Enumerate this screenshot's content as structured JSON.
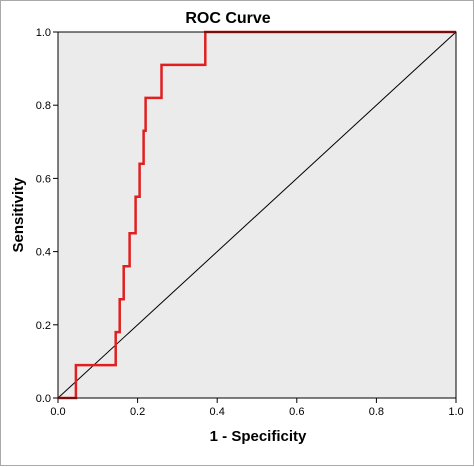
{
  "chart_data": {
    "type": "line",
    "title": "ROC Curve",
    "xlabel": "1 - Specificity",
    "ylabel": "Sensitivity",
    "xlim": [
      0.0,
      1.0
    ],
    "ylim": [
      0.0,
      1.0
    ],
    "xticks": [
      "0.0",
      "0.2",
      "0.4",
      "0.6",
      "0.8",
      "1.0"
    ],
    "yticks": [
      "0.0",
      "0.2",
      "0.4",
      "0.6",
      "0.8",
      "1.0"
    ],
    "grid": false,
    "plot_background": "#ebebeb",
    "series": [
      {
        "color": "#e02020",
        "x": [
          0.0,
          0.045,
          0.045,
          0.145,
          0.145,
          0.155,
          0.155,
          0.165,
          0.165,
          0.18,
          0.18,
          0.195,
          0.195,
          0.205,
          0.205,
          0.215,
          0.215,
          0.22,
          0.22,
          0.23,
          0.23,
          0.26,
          0.26,
          0.37,
          0.37,
          1.0
        ],
        "y": [
          0.0,
          0.0,
          0.09,
          0.09,
          0.18,
          0.18,
          0.27,
          0.27,
          0.36,
          0.36,
          0.45,
          0.45,
          0.55,
          0.55,
          0.64,
          0.64,
          0.73,
          0.73,
          0.82,
          0.82,
          0.82,
          0.82,
          0.91,
          0.91,
          1.0,
          1.0
        ]
      },
      {
        "color": "#000000",
        "x": [
          0.0,
          1.0
        ],
        "y": [
          0.0,
          1.0
        ]
      }
    ]
  }
}
